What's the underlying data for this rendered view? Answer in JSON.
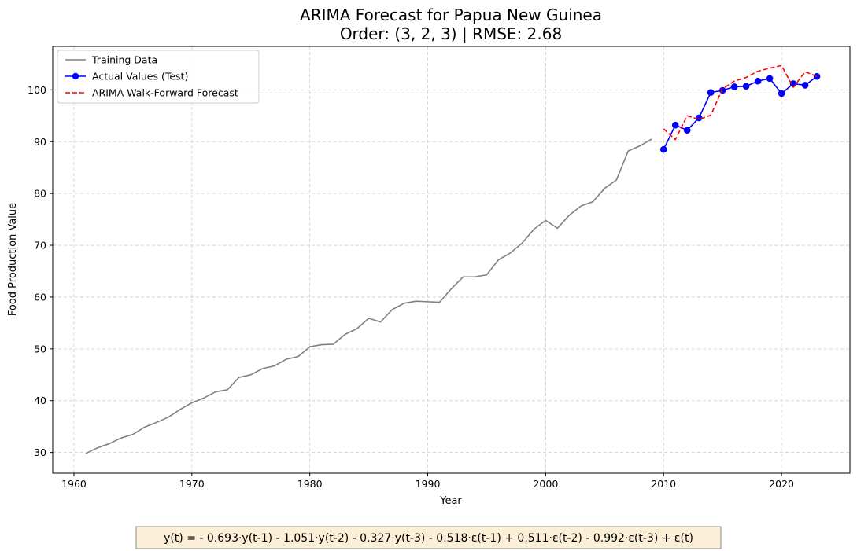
{
  "chart_data": {
    "type": "line",
    "title_line1": "ARIMA Forecast for Papua New Guinea",
    "title_line2": "Order: (3, 2, 3) | RMSE: 2.68",
    "xlabel": "Year",
    "ylabel": "Food Production Value",
    "xlim": [
      1958.2,
      2025.8
    ],
    "ylim": [
      26.0,
      108.4
    ],
    "xticks": [
      1960,
      1970,
      1980,
      1990,
      2000,
      2010,
      2020
    ],
    "yticks": [
      30,
      40,
      50,
      60,
      70,
      80,
      90,
      100
    ],
    "grid": true,
    "legend_position": "top-left",
    "series": [
      {
        "name": "Training Data",
        "color": "#808080",
        "style": "solid",
        "x": [
          1961,
          1962,
          1963,
          1964,
          1965,
          1966,
          1967,
          1968,
          1969,
          1970,
          1971,
          1972,
          1973,
          1974,
          1975,
          1976,
          1977,
          1978,
          1979,
          1980,
          1981,
          1982,
          1983,
          1984,
          1985,
          1986,
          1987,
          1988,
          1989,
          1990,
          1991,
          1992,
          1993,
          1994,
          1995,
          1996,
          1997,
          1998,
          1999,
          2000,
          2001,
          2002,
          2003,
          2004,
          2005,
          2006,
          2007,
          2008,
          2009
        ],
        "values": [
          29.8,
          30.9,
          31.7,
          32.8,
          33.5,
          34.9,
          35.8,
          36.8,
          38.3,
          39.6,
          40.5,
          41.7,
          42.1,
          44.5,
          45.0,
          46.2,
          46.7,
          48.0,
          48.5,
          50.4,
          50.8,
          50.9,
          52.8,
          53.9,
          55.9,
          55.2,
          57.6,
          58.8,
          59.2,
          59.1,
          59.0,
          61.6,
          63.9,
          63.9,
          64.3,
          67.2,
          68.5,
          70.4,
          73.1,
          74.8,
          73.3,
          75.8,
          77.6,
          78.4,
          81.0,
          82.6,
          88.2,
          89.2,
          90.5
        ]
      },
      {
        "name": "Actual Values (Test)",
        "color": "#0000ff",
        "style": "solid-markers",
        "x": [
          2010,
          2011,
          2012,
          2013,
          2014,
          2015,
          2016,
          2017,
          2018,
          2019,
          2020,
          2021,
          2022,
          2023
        ],
        "values": [
          88.5,
          93.2,
          92.2,
          94.6,
          99.5,
          99.9,
          100.6,
          100.7,
          101.7,
          102.2,
          99.3,
          101.2,
          100.9,
          102.6
        ]
      },
      {
        "name": "ARIMA Walk-Forward Forecast",
        "color": "#ff0000",
        "style": "dashed",
        "x": [
          2010,
          2011,
          2012,
          2013,
          2014,
          2015,
          2016,
          2017,
          2018,
          2019,
          2020,
          2021,
          2022,
          2023
        ],
        "values": [
          92.5,
          90.4,
          95.0,
          94.3,
          95.1,
          100.2,
          101.7,
          102.4,
          103.6,
          104.2,
          104.7,
          100.5,
          103.5,
          102.6
        ]
      }
    ]
  },
  "equation": "y(t) = - 0.693·y(t-1) - 1.051·y(t-2) - 0.327·y(t-3) - 0.518·ε(t-1) + 0.511·ε(t-2) - 0.992·ε(t-3) + ε(t)"
}
